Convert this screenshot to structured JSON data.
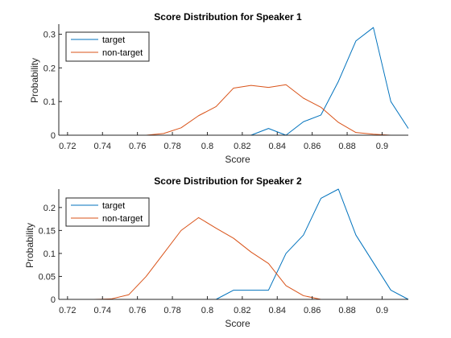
{
  "colors": {
    "target": "#0072bd",
    "nontarget": "#d95319",
    "axis": "#262626",
    "background": "#ffffff"
  },
  "chart_data": [
    {
      "type": "line",
      "title": "Score Distribution for Speaker 1",
      "xlabel": "Score",
      "ylabel": "Probability",
      "xlim": [
        0.715,
        0.915
      ],
      "ylim": [
        0,
        0.33
      ],
      "xticks": [
        0.72,
        0.74,
        0.76,
        0.78,
        0.8,
        0.82,
        0.84,
        0.86,
        0.88,
        0.9
      ],
      "xtick_labels": [
        "0.72",
        "0.74",
        "0.76",
        "0.78",
        "0.8",
        "0.82",
        "0.84",
        "0.86",
        "0.88",
        "0.9"
      ],
      "yticks": [
        0,
        0.1,
        0.2,
        0.3
      ],
      "ytick_labels": [
        "0",
        "0.1",
        "0.2",
        "0.3"
      ],
      "grid": false,
      "legend": "top-left",
      "series": [
        {
          "name": "target",
          "color_key": "target",
          "points": [
            [
              0.715,
              0
            ],
            [
              0.725,
              0
            ],
            [
              0.735,
              0
            ],
            [
              0.745,
              0
            ],
            [
              0.755,
              0
            ],
            [
              0.765,
              0
            ],
            [
              0.775,
              0
            ],
            [
              0.785,
              0
            ],
            [
              0.795,
              0
            ],
            [
              0.805,
              0
            ],
            [
              0.815,
              0
            ],
            [
              0.825,
              0
            ],
            [
              0.835,
              0.02
            ],
            [
              0.845,
              0
            ],
            [
              0.855,
              0.04
            ],
            [
              0.865,
              0.06
            ],
            [
              0.875,
              0.16
            ],
            [
              0.885,
              0.28
            ],
            [
              0.895,
              0.32
            ],
            [
              0.905,
              0.1
            ],
            [
              0.915,
              0.02
            ]
          ]
        },
        {
          "name": "non-target",
          "color_key": "nontarget",
          "points": [
            [
              0.715,
              0
            ],
            [
              0.725,
              0
            ],
            [
              0.735,
              0
            ],
            [
              0.745,
              0
            ],
            [
              0.755,
              0
            ],
            [
              0.765,
              0
            ],
            [
              0.775,
              0.005
            ],
            [
              0.785,
              0.022
            ],
            [
              0.795,
              0.058
            ],
            [
              0.805,
              0.085
            ],
            [
              0.815,
              0.14
            ],
            [
              0.825,
              0.148
            ],
            [
              0.835,
              0.142
            ],
            [
              0.845,
              0.15
            ],
            [
              0.855,
              0.11
            ],
            [
              0.865,
              0.083
            ],
            [
              0.875,
              0.038
            ],
            [
              0.885,
              0.008
            ],
            [
              0.895,
              0.003
            ],
            [
              0.905,
              0
            ],
            [
              0.915,
              0
            ]
          ]
        }
      ]
    },
    {
      "type": "line",
      "title": "Score Distribution for Speaker 2",
      "xlabel": "Score",
      "ylabel": "Probability",
      "xlim": [
        0.715,
        0.915
      ],
      "ylim": [
        0,
        0.24
      ],
      "xticks": [
        0.72,
        0.74,
        0.76,
        0.78,
        0.8,
        0.82,
        0.84,
        0.86,
        0.88,
        0.9
      ],
      "xtick_labels": [
        "0.72",
        "0.74",
        "0.76",
        "0.78",
        "0.8",
        "0.82",
        "0.84",
        "0.86",
        "0.88",
        "0.9"
      ],
      "yticks": [
        0,
        0.05,
        0.1,
        0.15,
        0.2
      ],
      "ytick_labels": [
        "0",
        "0.05",
        "0.1",
        "0.15",
        "0.2"
      ],
      "grid": false,
      "legend": "top-left",
      "series": [
        {
          "name": "target",
          "color_key": "target",
          "points": [
            [
              0.715,
              0
            ],
            [
              0.725,
              0
            ],
            [
              0.735,
              0
            ],
            [
              0.745,
              0
            ],
            [
              0.755,
              0
            ],
            [
              0.765,
              0
            ],
            [
              0.775,
              0
            ],
            [
              0.785,
              0
            ],
            [
              0.795,
              0
            ],
            [
              0.805,
              0
            ],
            [
              0.815,
              0.02
            ],
            [
              0.825,
              0.02
            ],
            [
              0.835,
              0.02
            ],
            [
              0.845,
              0.1
            ],
            [
              0.855,
              0.14
            ],
            [
              0.865,
              0.22
            ],
            [
              0.875,
              0.24
            ],
            [
              0.885,
              0.14
            ],
            [
              0.895,
              0.08
            ],
            [
              0.905,
              0.02
            ],
            [
              0.915,
              0
            ]
          ]
        },
        {
          "name": "non-target",
          "color_key": "nontarget",
          "points": [
            [
              0.715,
              0
            ],
            [
              0.725,
              0
            ],
            [
              0.735,
              0
            ],
            [
              0.745,
              0.001
            ],
            [
              0.755,
              0.01
            ],
            [
              0.765,
              0.05
            ],
            [
              0.775,
              0.1
            ],
            [
              0.785,
              0.15
            ],
            [
              0.795,
              0.178
            ],
            [
              0.805,
              0.155
            ],
            [
              0.815,
              0.133
            ],
            [
              0.825,
              0.103
            ],
            [
              0.835,
              0.078
            ],
            [
              0.845,
              0.03
            ],
            [
              0.855,
              0.008
            ],
            [
              0.865,
              0
            ],
            [
              0.875,
              0
            ],
            [
              0.885,
              0
            ],
            [
              0.895,
              0
            ],
            [
              0.905,
              0
            ],
            [
              0.915,
              0
            ]
          ]
        }
      ]
    }
  ]
}
